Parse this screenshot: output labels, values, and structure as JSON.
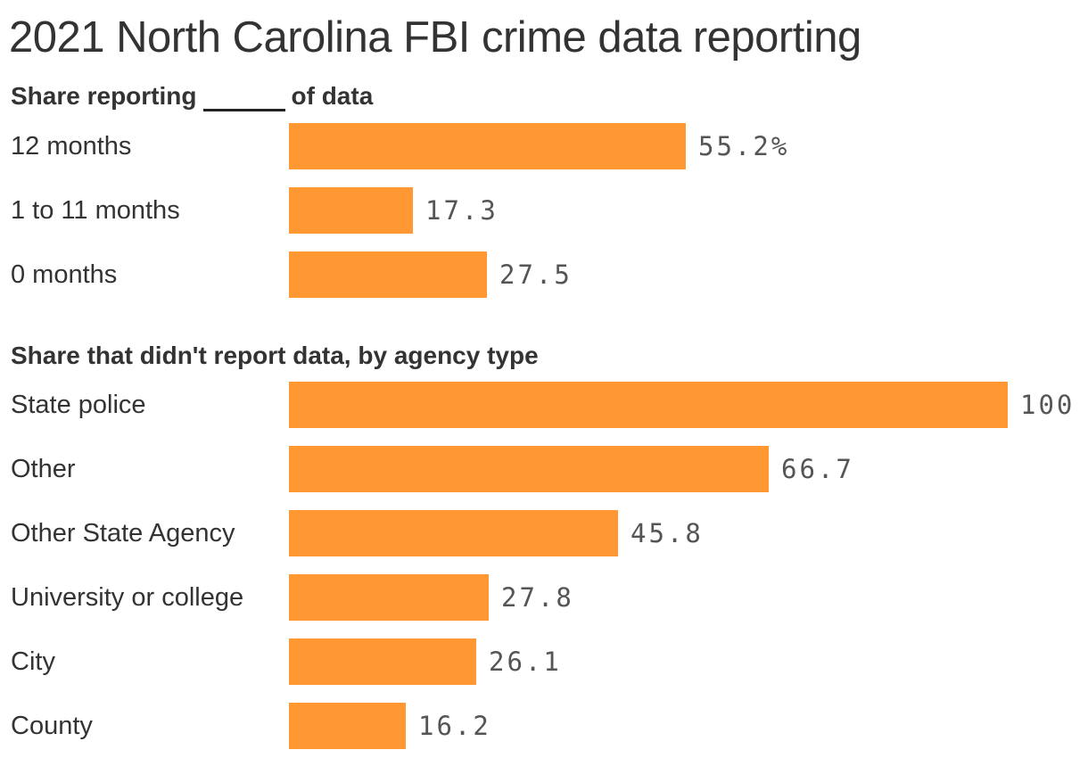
{
  "title": "2021 North Carolina FBI crime data reporting",
  "chart_data": [
    {
      "type": "bar",
      "orientation": "horizontal",
      "title_prefix": "Share reporting",
      "title_suffix": "of data",
      "categories": [
        "12 months",
        "1 to 11 months",
        "0 months"
      ],
      "values": [
        55.2,
        17.3,
        27.5
      ],
      "value_labels": [
        "55.2%",
        "17.3",
        "27.5"
      ],
      "xlim": [
        0,
        100
      ],
      "bar_color": "#ff9832"
    },
    {
      "type": "bar",
      "orientation": "horizontal",
      "title": "Share that didn't report data, by agency type",
      "categories": [
        "State police",
        "Other",
        "Other State Agency",
        "University or college",
        "City",
        "County"
      ],
      "values": [
        100,
        66.7,
        45.8,
        27.8,
        26.1,
        16.2
      ],
      "value_labels": [
        "100",
        "66.7",
        "45.8",
        "27.8",
        "26.1",
        "16.2"
      ],
      "xlim": [
        0,
        100
      ],
      "bar_color": "#ff9832"
    }
  ]
}
